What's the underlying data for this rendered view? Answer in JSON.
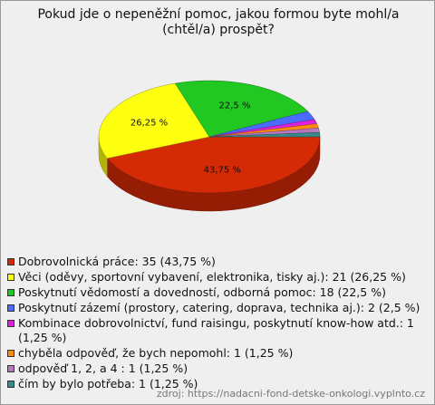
{
  "chart_data": {
    "type": "pie",
    "title": "Pokud jde o nepeněžní pomoc, jakou formou byte mohl/a (chtěl/a) prospět?",
    "categories": [
      "Dobrovolnická práce: 35 (43,75 %)",
      "Věci (oděvy, sportovní vybavení, elektronika, tisky aj.): 21 (26,25 %)",
      "Poskytnutí vědomostí a dovedností, odborná pomoc: 18 (22,5 %)",
      "Poskytnutí zázemí (prostory, catering, doprava, technika aj.): 2 (2,5 %)",
      "Kombinace dobrovolnictví, fund raisingu, poskytnutí know-how atd.: 1 (1,25 %)",
      "chyběla odpověď, že bych nepomohl: 1 (1,25 %)",
      "odpověď 1, 2, a 4 : 1 (1,25 %)",
      "čím by bylo potřeba: 1 (1,25 %)"
    ],
    "values": [
      43.75,
      26.25,
      22.5,
      2.5,
      1.25,
      1.25,
      1.25,
      1.25
    ],
    "value_labels": [
      "43,75 %",
      "26,25 %",
      "22,5 %",
      null,
      null,
      null,
      null,
      null
    ],
    "colors": [
      "#d42a06",
      "#ffff10",
      "#22c822",
      "#4a6cff",
      "#dc22dc",
      "#ff8a10",
      "#b878c0",
      "#3a8a8a"
    ],
    "source": "zdroj: https://nadacni-fond-detske-onkologi.vyplnto.cz"
  }
}
